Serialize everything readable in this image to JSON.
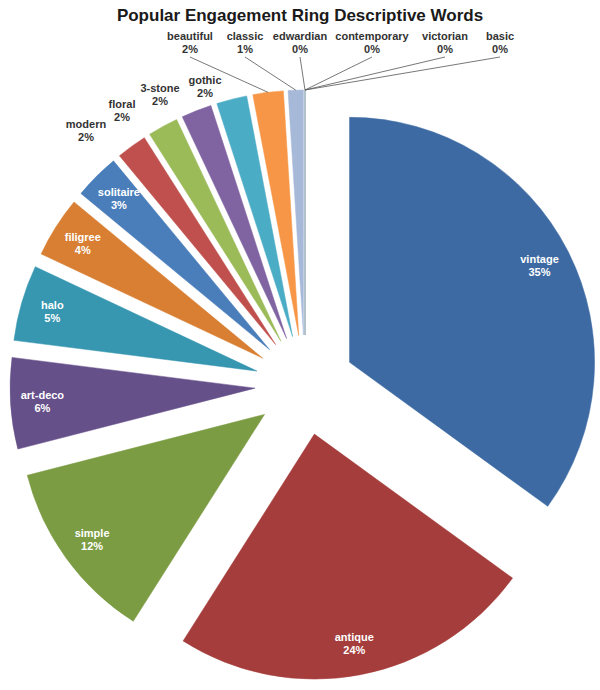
{
  "chart_data": {
    "type": "pie",
    "title": "Popular Engagement Ring Descriptive Words",
    "categories": [
      "vintage",
      "antique",
      "simple",
      "art-deco",
      "halo",
      "filigree",
      "solitaire",
      "modern",
      "floral",
      "3-stone",
      "gothic",
      "beautiful",
      "classic",
      "edwardian",
      "contemporary",
      "victorian",
      "basic"
    ],
    "values": [
      35,
      24,
      12,
      6,
      5,
      4,
      3,
      2,
      2,
      2,
      2,
      2,
      1,
      0,
      0,
      0,
      0
    ],
    "value_labels": [
      "35%",
      "24%",
      "12%",
      "6%",
      "5%",
      "4%",
      "3%",
      "2%",
      "2%",
      "2%",
      "2%",
      "2%",
      "1%",
      "0%",
      "0%",
      "0%",
      "0%"
    ],
    "colors": [
      "#3d6aa3",
      "#a43d3b",
      "#7c9c44",
      "#66508a",
      "#3796b0",
      "#d87f33",
      "#4a7ebb",
      "#c0504d",
      "#9bbb59",
      "#8064a2",
      "#4bacc6",
      "#f79646",
      "#a7b9d9",
      "#c3d69b",
      "#d9a3a1",
      "#b3a2c7",
      "#93cddd"
    ],
    "data_labels": true
  }
}
